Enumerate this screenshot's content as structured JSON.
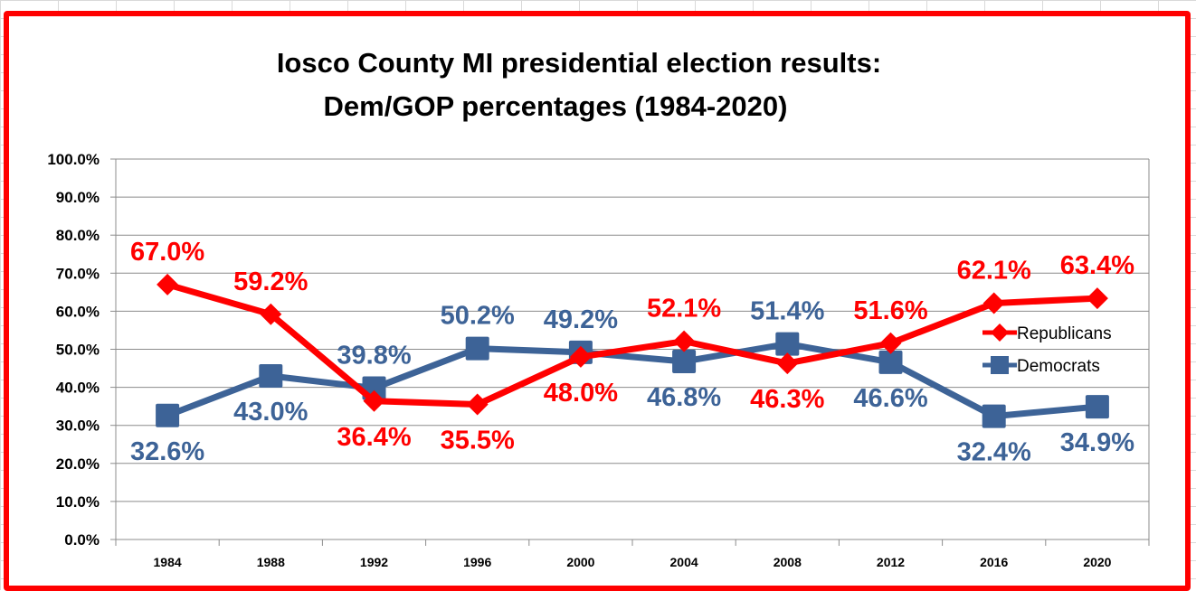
{
  "chart_data": {
    "type": "line",
    "title": [
      "Iosco County MI presidential election results:",
      "Dem/GOP percentages (1984-2020)"
    ],
    "xlabel": "",
    "ylabel": "",
    "categories": [
      "1984",
      "1988",
      "1992",
      "1996",
      "2000",
      "2004",
      "2008",
      "2012",
      "2016",
      "2020"
    ],
    "ylim": [
      0,
      100
    ],
    "y_ticks": [
      0,
      10,
      20,
      30,
      40,
      50,
      60,
      70,
      80,
      90,
      100
    ],
    "y_tick_labels": [
      "0.0%",
      "10.0%",
      "20.0%",
      "30.0%",
      "40.0%",
      "50.0%",
      "60.0%",
      "70.0%",
      "80.0%",
      "90.0%",
      "100.0%"
    ],
    "grid": true,
    "legend_position": "right",
    "series": [
      {
        "name": "Republicans",
        "color": "#ff0000",
        "marker": "diamond",
        "values": [
          67.0,
          59.2,
          36.4,
          35.5,
          48.0,
          52.1,
          46.3,
          51.6,
          62.1,
          63.4
        ],
        "labels": [
          "67.0%",
          "59.2%",
          "36.4%",
          "35.5%",
          "48.0%",
          "52.1%",
          "46.3%",
          "51.6%",
          "62.1%",
          "63.4%"
        ],
        "label_sides": [
          "above",
          "above",
          "below",
          "below",
          "below",
          "above",
          "below",
          "above",
          "above",
          "above"
        ]
      },
      {
        "name": "Democrats",
        "color": "#3d6397",
        "marker": "square",
        "values": [
          32.6,
          43.0,
          39.8,
          50.2,
          49.2,
          46.8,
          51.4,
          46.6,
          32.4,
          34.9
        ],
        "labels": [
          "32.6%",
          "43.0%",
          "39.8%",
          "50.2%",
          "49.2%",
          "46.8%",
          "51.4%",
          "46.6%",
          "32.4%",
          "34.9%"
        ],
        "label_sides": [
          "below",
          "below",
          "above",
          "above",
          "above",
          "below",
          "above",
          "below",
          "below",
          "below"
        ]
      }
    ]
  }
}
